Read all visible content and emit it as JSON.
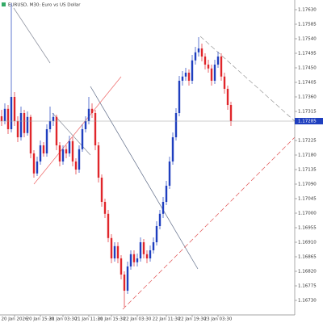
{
  "chart_data": {
    "type": "candlestick",
    "title": "EURUSD, M30:  Euro vs US Dollar",
    "up_color": "#1f3fbf",
    "down_color": "#e0262b",
    "grid": false,
    "ylim": [
      1.16685,
      1.1766
    ],
    "yticks": [
      {
        "value": 1.1763,
        "label": "1.17630"
      },
      {
        "value": 1.17585,
        "label": "1.17585"
      },
      {
        "value": 1.1754,
        "label": "1.17540"
      },
      {
        "value": 1.17495,
        "label": "1.17495"
      },
      {
        "value": 1.1745,
        "label": "1.17450"
      },
      {
        "value": 1.17405,
        "label": "1.17405"
      },
      {
        "value": 1.1736,
        "label": "1.17360"
      },
      {
        "value": 1.17315,
        "label": "1.17315"
      },
      {
        "value": 1.17225,
        "label": "1.17225"
      },
      {
        "value": 1.1718,
        "label": "1.17180"
      },
      {
        "value": 1.17135,
        "label": "1.17135"
      },
      {
        "value": 1.1709,
        "label": "1.17090"
      },
      {
        "value": 1.17045,
        "label": "1.17045"
      },
      {
        "value": 1.17,
        "label": "1.17000"
      },
      {
        "value": 1.16955,
        "label": "1.16955"
      },
      {
        "value": 1.1691,
        "label": "1.16910"
      },
      {
        "value": 1.16865,
        "label": "1.16865"
      },
      {
        "value": 1.1682,
        "label": "1.16820"
      },
      {
        "value": 1.16775,
        "label": "1.16775"
      },
      {
        "value": 1.1673,
        "label": "1.16730"
      }
    ],
    "current_price": {
      "value": 1.17285,
      "label": "1.17285"
    },
    "categories": [
      null,
      null,
      null,
      null,
      "20 Jan 2026",
      null,
      null,
      null,
      null,
      null,
      null,
      null,
      "20 Jan 15:30",
      null,
      null,
      null,
      null,
      null,
      null,
      "21 Jan 03:30",
      null,
      null,
      null,
      null,
      null,
      null,
      null,
      "21 Jan 11:30",
      null,
      null,
      null,
      null,
      null,
      null,
      "21 Jan 15:30",
      null,
      null,
      null,
      null,
      null,
      null,
      null,
      "22 Jan 03:30",
      null,
      null,
      null,
      null,
      null,
      null,
      null,
      null,
      "22 Jan 11:30",
      null,
      null,
      null,
      null,
      null,
      null,
      null,
      "22 Jan 19:30",
      null,
      null,
      null,
      null,
      null,
      null,
      null,
      "23 Jan 03:30",
      null,
      null,
      null,
      null
    ],
    "open": [
      1.173,
      1.17285,
      1.17323,
      1.1726,
      1.1736,
      1.17285,
      1.17235,
      1.1731,
      1.17248,
      1.17298,
      1.17185,
      1.17123,
      1.1716,
      1.1721,
      1.17185,
      1.1726,
      1.17285,
      1.17298,
      1.1721,
      1.1716,
      1.17198,
      1.17185,
      1.17223,
      1.1716,
      1.17135,
      1.17198,
      1.1726,
      1.17285,
      1.17323,
      1.1731,
      1.1721,
      1.1711,
      1.17035,
      1.16998,
      1.16923,
      1.1686,
      1.16898,
      1.1686,
      1.1681,
      1.1676,
      1.16835,
      1.16873,
      1.16848,
      1.1686,
      1.1691,
      1.16873,
      1.1686,
      1.16885,
      1.1691,
      1.1696,
      1.16998,
      1.17035,
      1.17085,
      1.1716,
      1.17235,
      1.1731,
      1.1741,
      1.17423,
      1.17435,
      1.1741,
      1.17473,
      1.17498,
      1.1751,
      1.17485,
      1.1746,
      1.17448,
      1.1741,
      1.1746,
      1.17485,
      1.17423,
      1.17385,
      1.17335
    ],
    "high": [
      1.1732,
      1.1734,
      1.17335,
      1.1765,
      1.17375,
      1.173,
      1.1733,
      1.1732,
      1.17315,
      1.17305,
      1.17195,
      1.17175,
      1.17225,
      1.1722,
      1.17275,
      1.1733,
      1.1731,
      1.17305,
      1.1722,
      1.1721,
      1.1721,
      1.1724,
      1.17235,
      1.1717,
      1.1721,
      1.17275,
      1.173,
      1.1736,
      1.1734,
      1.1732,
      1.1722,
      1.1712,
      1.17045,
      1.1701,
      1.16935,
      1.1691,
      1.1691,
      1.1687,
      1.1682,
      1.1685,
      1.16885,
      1.16885,
      1.16875,
      1.16925,
      1.1692,
      1.16885,
      1.169,
      1.16925,
      1.16975,
      1.1701,
      1.1705,
      1.171,
      1.17175,
      1.1725,
      1.17325,
      1.17425,
      1.1744,
      1.1745,
      1.17445,
      1.1749,
      1.17515,
      1.17545,
      1.17525,
      1.17495,
      1.17475,
      1.1746,
      1.17475,
      1.175,
      1.17495,
      1.17435,
      1.17395,
      1.17345
    ],
    "low": [
      1.1727,
      1.17275,
      1.17245,
      1.1725,
      1.1727,
      1.1722,
      1.17225,
      1.17235,
      1.1724,
      1.1717,
      1.1711,
      1.17115,
      1.1715,
      1.17175,
      1.17175,
      1.1725,
      1.1727,
      1.17195,
      1.17145,
      1.1715,
      1.1717,
      1.17175,
      1.17145,
      1.1712,
      1.17125,
      1.1719,
      1.1725,
      1.17275,
      1.17295,
      1.17195,
      1.17095,
      1.1702,
      1.16985,
      1.1691,
      1.16845,
      1.1685,
      1.16845,
      1.16795,
      1.1671,
      1.1675,
      1.16825,
      1.16835,
      1.16835,
      1.1685,
      1.1686,
      1.16845,
      1.1685,
      1.16875,
      1.169,
      1.1695,
      1.16985,
      1.17025,
      1.17075,
      1.1715,
      1.17225,
      1.173,
      1.17395,
      1.1741,
      1.17395,
      1.174,
      1.1746,
      1.17485,
      1.1747,
      1.17445,
      1.17435,
      1.17395,
      1.174,
      1.1745,
      1.1741,
      1.1737,
      1.1732,
      1.1727
    ],
    "close": [
      1.17285,
      1.17323,
      1.1726,
      1.1736,
      1.17285,
      1.17235,
      1.1731,
      1.17248,
      1.17298,
      1.17185,
      1.17123,
      1.1716,
      1.1721,
      1.17185,
      1.1726,
      1.17285,
      1.17298,
      1.1721,
      1.1716,
      1.17198,
      1.17185,
      1.17223,
      1.1716,
      1.17135,
      1.17198,
      1.1726,
      1.17285,
      1.17323,
      1.1731,
      1.1721,
      1.1711,
      1.17035,
      1.16998,
      1.16923,
      1.1686,
      1.16898,
      1.1686,
      1.1681,
      1.1676,
      1.16835,
      1.16873,
      1.16848,
      1.1686,
      1.1691,
      1.16873,
      1.1686,
      1.16885,
      1.1691,
      1.1696,
      1.16998,
      1.17035,
      1.17085,
      1.1716,
      1.17235,
      1.1731,
      1.1741,
      1.17423,
      1.17435,
      1.1741,
      1.17473,
      1.17498,
      1.1751,
      1.17485,
      1.1746,
      1.17448,
      1.1741,
      1.1746,
      1.17485,
      1.17423,
      1.17385,
      1.17335,
      1.17285
    ]
  }
}
